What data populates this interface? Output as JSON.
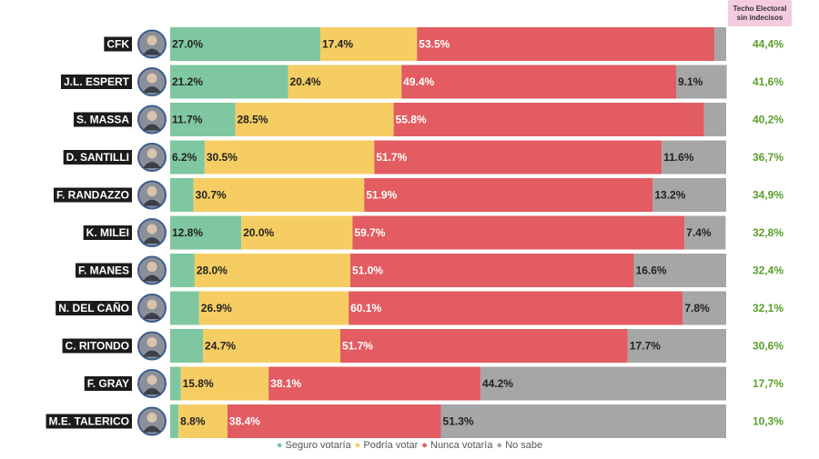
{
  "header": {
    "line1": "Techo Electoral",
    "line2": "sin indecisos"
  },
  "legend": {
    "items": [
      {
        "label": "Seguro votaría",
        "color": "#7fc7a0"
      },
      {
        "label": "Podría votar",
        "color": "#f5cd63"
      },
      {
        "label": "Nunca votaría",
        "color": "#e25c61"
      },
      {
        "label": "No sabe",
        "color": "#a6a6a6"
      }
    ]
  },
  "chart_data": {
    "type": "bar",
    "orientation": "horizontal",
    "stacked": true,
    "xlim": [
      0,
      100
    ],
    "series": [
      {
        "name": "Seguro votaría",
        "color": "#7fc7a0"
      },
      {
        "name": "Podría votar",
        "color": "#f5cd63"
      },
      {
        "name": "Nunca votaría",
        "color": "#e25c61"
      },
      {
        "name": "No sabe",
        "color": "#a6a6a6"
      }
    ],
    "rows": [
      {
        "name": "CFK",
        "values": [
          27.0,
          17.4,
          53.5,
          2.1
        ],
        "labels": [
          "27.0%",
          "17.4%",
          "53.5%",
          ""
        ],
        "ceiling": "44,4%"
      },
      {
        "name": "J.L. ESPERT",
        "values": [
          21.2,
          20.4,
          49.4,
          9.1
        ],
        "labels": [
          "21.2%",
          "20.4%",
          "49.4%",
          "9.1%"
        ],
        "ceiling": "41,6%"
      },
      {
        "name": "S. MASSA",
        "values": [
          11.7,
          28.5,
          55.8,
          4.0
        ],
        "labels": [
          "11.7%",
          "28.5%",
          "55.8%",
          ""
        ],
        "ceiling": "40,2%"
      },
      {
        "name": "D. SANTILLI",
        "values": [
          6.2,
          30.5,
          51.7,
          11.6
        ],
        "labels": [
          "6.2%",
          "30.5%",
          "51.7%",
          "11.6%"
        ],
        "ceiling": "36,7%"
      },
      {
        "name": "F. RANDAZZO",
        "values": [
          4.2,
          30.7,
          51.9,
          13.2
        ],
        "labels": [
          "",
          "30.7%",
          "51.9%",
          "13.2%"
        ],
        "ceiling": "34,9%"
      },
      {
        "name": "K. MILEI",
        "values": [
          12.8,
          20.0,
          59.7,
          7.4
        ],
        "labels": [
          "12.8%",
          "20.0%",
          "59.7%",
          "7.4%"
        ],
        "ceiling": "32,8%"
      },
      {
        "name": "F. MANES",
        "values": [
          4.4,
          28.0,
          51.0,
          16.6
        ],
        "labels": [
          "",
          "28.0%",
          "51.0%",
          "16.6%"
        ],
        "ceiling": "32,4%"
      },
      {
        "name": "N. DEL CAÑO",
        "values": [
          5.2,
          26.9,
          60.1,
          7.8
        ],
        "labels": [
          "",
          "26.9%",
          "60.1%",
          "7.8%"
        ],
        "ceiling": "32,1%"
      },
      {
        "name": "C. RITONDO",
        "values": [
          5.9,
          24.7,
          51.7,
          17.7
        ],
        "labels": [
          "",
          "24.7%",
          "51.7%",
          "17.7%"
        ],
        "ceiling": "30,6%"
      },
      {
        "name": "F. GRAY",
        "values": [
          1.9,
          15.8,
          38.1,
          44.2
        ],
        "labels": [
          "",
          "15.8%",
          "38.1%",
          "44.2%"
        ],
        "ceiling": "17,7%"
      },
      {
        "name": "M.E. TALERICO",
        "values": [
          1.5,
          8.8,
          38.4,
          51.3
        ],
        "labels": [
          "",
          "8.8%",
          "38.4%",
          "51.3%"
        ],
        "ceiling": "10,3%"
      }
    ]
  }
}
